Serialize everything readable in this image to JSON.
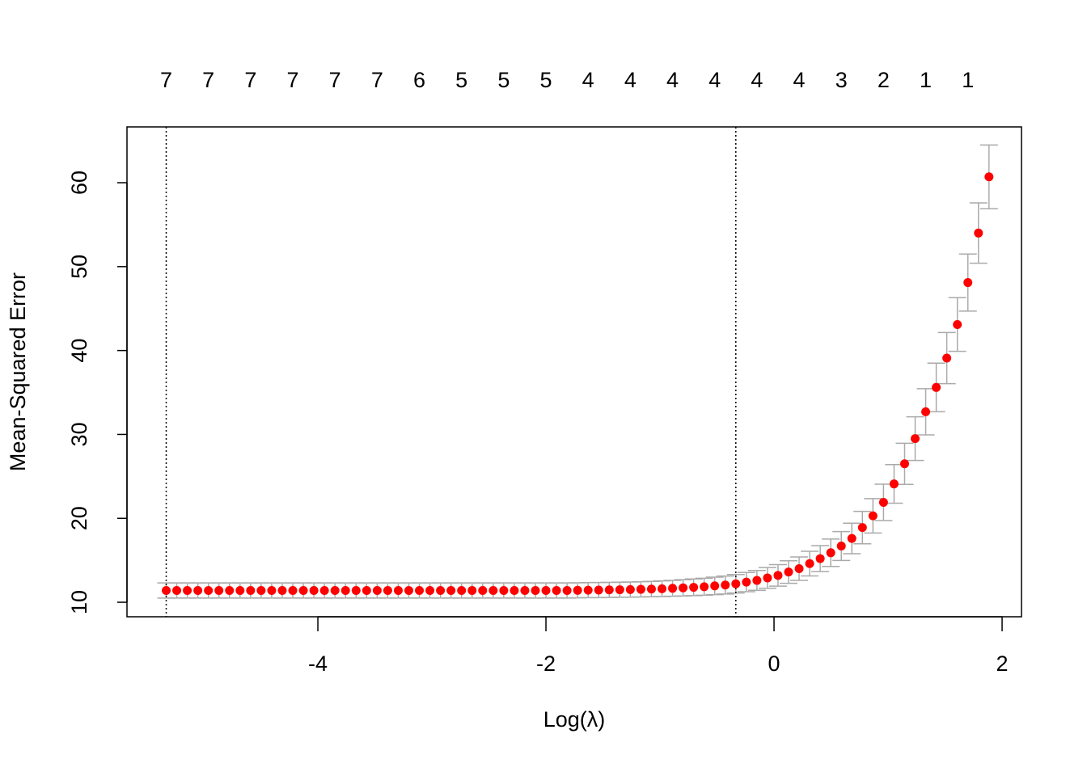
{
  "chart_data": {
    "type": "scatter",
    "xlabel": "Log(λ)",
    "ylabel": "Mean-Squared Error",
    "x": [
      -5.33,
      -5.2375,
      -5.145,
      -5.0525,
      -4.96,
      -4.8675,
      -4.775,
      -4.6825,
      -4.59,
      -4.4975,
      -4.405,
      -4.3125,
      -4.22,
      -4.1275,
      -4.035,
      -3.9425,
      -3.85,
      -3.7575,
      -3.665,
      -3.5725,
      -3.48,
      -3.3875,
      -3.295,
      -3.2025,
      -3.11,
      -3.0175,
      -2.925,
      -2.8325,
      -2.74,
      -2.6475,
      -2.555,
      -2.4625,
      -2.37,
      -2.2775,
      -2.185,
      -2.0925,
      -2.0,
      -1.9075,
      -1.815,
      -1.7225,
      -1.63,
      -1.5375,
      -1.445,
      -1.3525,
      -1.26,
      -1.1675,
      -1.075,
      -0.9825,
      -0.89,
      -0.7975,
      -0.705,
      -0.6125,
      -0.52,
      -0.4275,
      -0.335,
      -0.2425,
      -0.15,
      -0.0575,
      0.035,
      0.1275,
      0.22,
      0.3125,
      0.405,
      0.4975,
      0.59,
      0.6825,
      0.775,
      0.8675,
      0.96,
      1.0525,
      1.145,
      1.2375,
      1.33,
      1.4225,
      1.515,
      1.6075,
      1.7,
      1.7925,
      1.885
    ],
    "values": [
      11.4,
      11.4,
      11.4,
      11.4,
      11.4,
      11.4,
      11.4,
      11.4,
      11.4,
      11.4,
      11.4,
      11.4,
      11.4,
      11.4,
      11.4,
      11.4,
      11.4,
      11.4,
      11.4,
      11.4,
      11.4,
      11.4,
      11.4,
      11.4,
      11.4,
      11.4,
      11.4,
      11.4,
      11.4,
      11.4,
      11.4,
      11.4,
      11.4,
      11.4,
      11.4,
      11.4,
      11.4,
      11.4,
      11.4,
      11.42,
      11.44,
      11.45,
      11.47,
      11.49,
      11.51,
      11.54,
      11.57,
      11.61,
      11.66,
      11.72,
      11.78,
      11.85,
      11.95,
      12.05,
      12.2,
      12.4,
      12.6,
      12.9,
      13.2,
      13.6,
      14.0,
      14.6,
      15.2,
      15.9,
      16.7,
      17.6,
      18.9,
      20.3,
      21.9,
      24.1,
      26.5,
      29.5,
      32.7,
      35.6,
      39.1,
      43.1,
      48.1,
      54.0,
      60.7
    ],
    "errors": [
      0.9,
      0.9,
      0.9,
      0.9,
      0.9,
      0.9,
      0.9,
      0.9,
      0.9,
      0.9,
      0.9,
      0.9,
      0.9,
      0.9,
      0.9,
      0.9,
      0.9,
      0.9,
      0.9,
      0.9,
      0.9,
      0.9,
      0.9,
      0.9,
      0.9,
      0.9,
      0.9,
      0.9,
      0.9,
      0.9,
      0.9,
      0.9,
      0.9,
      0.9,
      0.9,
      0.9,
      0.9,
      0.9,
      0.9,
      0.9,
      0.9,
      0.9,
      0.9,
      0.9,
      0.9,
      0.91,
      0.92,
      0.93,
      0.95,
      0.97,
      0.99,
      1.01,
      1.04,
      1.07,
      1.1,
      1.14,
      1.18,
      1.23,
      1.28,
      1.34,
      1.4,
      1.47,
      1.55,
      1.63,
      1.72,
      1.82,
      1.93,
      2.05,
      2.17,
      2.3,
      2.45,
      2.6,
      2.75,
      2.9,
      3.05,
      3.2,
      3.4,
      3.6,
      3.8
    ],
    "color": "#ff0000",
    "error_color": "#aaaaaa",
    "vlines": [
      -5.33,
      -0.335
    ],
    "xlim": [
      -5.674,
      2.17
    ],
    "ylim": [
      8.27,
      66.65
    ],
    "xticks": [
      -4,
      -2,
      0,
      2
    ],
    "yticks": [
      10,
      20,
      30,
      40,
      50,
      60
    ],
    "x2ticks": [
      {
        "value": -5.33,
        "label": "7"
      },
      {
        "value": -4.96,
        "label": "7"
      },
      {
        "value": -4.59,
        "label": "7"
      },
      {
        "value": -4.22,
        "label": "7"
      },
      {
        "value": -3.85,
        "label": "7"
      },
      {
        "value": -3.48,
        "label": "7"
      },
      {
        "value": -3.11,
        "label": "6"
      },
      {
        "value": -2.74,
        "label": "5"
      },
      {
        "value": -2.37,
        "label": "5"
      },
      {
        "value": -2.0,
        "label": "5"
      },
      {
        "value": -1.63,
        "label": "4"
      },
      {
        "value": -1.26,
        "label": "4"
      },
      {
        "value": -0.89,
        "label": "4"
      },
      {
        "value": -0.52,
        "label": "4"
      },
      {
        "value": -0.15,
        "label": "4"
      },
      {
        "value": 0.22,
        "label": "4"
      },
      {
        "value": 0.59,
        "label": "3"
      },
      {
        "value": 0.96,
        "label": "2"
      },
      {
        "value": 1.33,
        "label": "1"
      },
      {
        "value": 1.7,
        "label": "1"
      }
    ]
  }
}
